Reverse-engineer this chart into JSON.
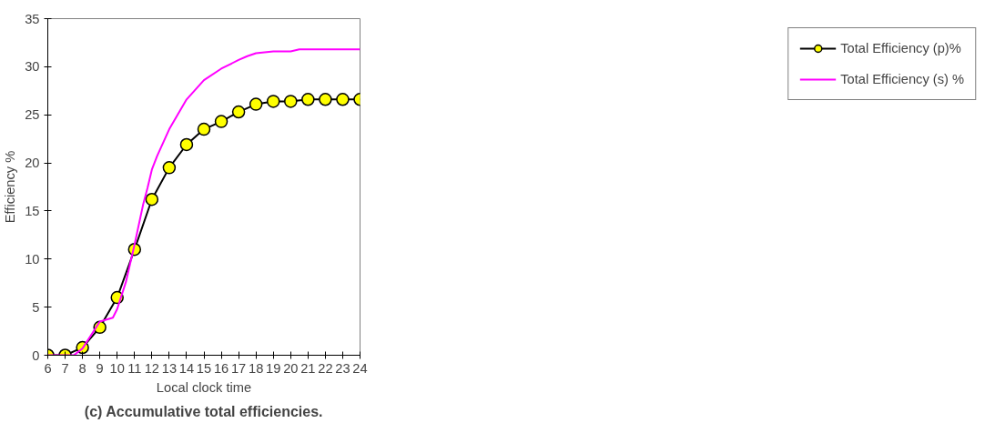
{
  "chart_data": {
    "type": "line",
    "title": "(c) Accumulative total efficiencies.",
    "xlabel": "Local clock time",
    "ylabel": "Efficiency %",
    "xlim": [
      6,
      24
    ],
    "xticks": [
      6,
      7,
      8,
      9,
      10,
      11,
      12,
      13,
      14,
      15,
      16,
      17,
      18,
      19,
      20,
      21,
      22,
      23,
      24
    ],
    "ylim": [
      0,
      35
    ],
    "yticks": [
      0,
      5,
      10,
      15,
      20,
      25,
      30,
      35
    ],
    "grid": false,
    "legend": "right",
    "series": [
      {
        "name": "Total Efficiency (p)%",
        "color": "#000000",
        "marker": "circle",
        "x": [
          6,
          7,
          8,
          9,
          10,
          11,
          12,
          13,
          14,
          15,
          16,
          17,
          18,
          19,
          20,
          21,
          22,
          23,
          24
        ],
        "values": [
          0,
          0,
          0.8,
          2.9,
          6,
          11,
          16.2,
          19.5,
          21.9,
          23.5,
          24.3,
          25.3,
          26.1,
          26.4,
          26.4,
          26.6,
          26.6,
          26.6,
          26.6
        ]
      },
      {
        "name": "Total Efficiency (s) %",
        "color": "#ff00ff",
        "marker": "none",
        "x": [
          6,
          7,
          7.5,
          8,
          9,
          9.75,
          10,
          10.5,
          11,
          11.5,
          11.75,
          12,
          12.3,
          13,
          14,
          15,
          16,
          17,
          17.5,
          18,
          19,
          20,
          20.5,
          21,
          22,
          23,
          24
        ],
        "values": [
          0,
          0,
          0,
          0.7,
          3.5,
          3.9,
          4.8,
          7.6,
          11.5,
          15.7,
          17.4,
          19.3,
          20.7,
          23.5,
          26.6,
          28.6,
          29.8,
          30.7,
          31.1,
          31.4,
          31.6,
          31.6,
          31.8,
          31.8,
          31.8,
          31.8,
          31.8
        ]
      }
    ]
  }
}
